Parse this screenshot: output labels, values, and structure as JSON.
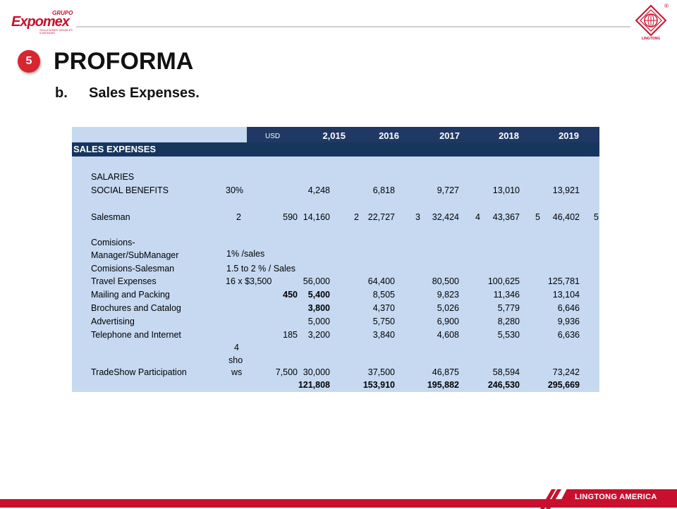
{
  "header": {
    "brand_grupo": "GRUPO",
    "brand_name": "Expomex",
    "brand_tag": "SOLUCIONES VISUALES ILIMITADAS",
    "right_logo_text": "LINGTONG",
    "registered": "®"
  },
  "slide": {
    "number": "5",
    "title": "PROFORMA",
    "subtitle_marker": "b.",
    "subtitle": "Sales Expenses."
  },
  "table": {
    "currency": "USD",
    "years": [
      "2,015",
      "2016",
      "2017",
      "2018",
      "2019"
    ],
    "section": "SALES EXPENSES",
    "rows": {
      "salaries": {
        "label": "SALARIES"
      },
      "social": {
        "label": "SOCIAL BENEFITS",
        "param": "30%",
        "v1": "4,248",
        "v2": "6,818",
        "v3": "9,727",
        "v4": "13,010",
        "v5": "13,921"
      },
      "salesman": {
        "label": "Salesman",
        "param": "2",
        "unit": "590",
        "v1": "14,160",
        "n2": "2",
        "v2": "22,727",
        "n3": "3",
        "v3": "32,424",
        "n4": "4",
        "v4": "43,367",
        "n5": "5",
        "v5": "46,402",
        "n6": "5"
      },
      "comisions_mgr": {
        "label1": "Comisions-",
        "label2": "Manager/SubManager",
        "param": "1% /sales"
      },
      "comisions_sales": {
        "label": "Comisions-Salesman",
        "param": "1.5 to 2 % / Sales"
      },
      "travel": {
        "label": "Travel Expenses",
        "param": "16 x $3,500",
        "v1": "56,000",
        "v2": "64,400",
        "v3": "80,500",
        "v4": "100,625",
        "v5": "125,781"
      },
      "mailing": {
        "label": "Mailing and Packing",
        "unit": "450",
        "v1": "5,400",
        "v2": "8,505",
        "v3": "9,823",
        "v4": "11,346",
        "v5": "13,104"
      },
      "brochures": {
        "label": "Brochures and Catalog",
        "v1": "3,800",
        "v2": "4,370",
        "v3": "5,026",
        "v4": "5,779",
        "v5": "6,646"
      },
      "advertising": {
        "label": "Advertising",
        "v1": "5,000",
        "v2": "5,750",
        "v3": "6,900",
        "v4": "8,280",
        "v5": "9,936"
      },
      "telephone": {
        "label": "Telephone and Internet",
        "unit": "185",
        "v1": "3,200",
        "v2": "3,840",
        "v3": "4,608",
        "v4": "5,530",
        "v5": "6,636"
      },
      "tradeshow": {
        "label": "TradeShow Participation",
        "param1": "4",
        "param2": "sho",
        "param3": "ws",
        "unit": "7,500",
        "v1": "30,000",
        "v2": "37,500",
        "v3": "46,875",
        "v4": "58,594",
        "v5": "73,242"
      },
      "total": {
        "v1": "121,808",
        "v2": "153,910",
        "v3": "195,882",
        "v4": "246,530",
        "v5": "295,669"
      }
    }
  },
  "footer": {
    "label": "LINGTONG AMERICA"
  },
  "colors": {
    "accent": "#c8102e",
    "table_bg": "#c6d9f1",
    "header_bg": "#1f3864"
  }
}
